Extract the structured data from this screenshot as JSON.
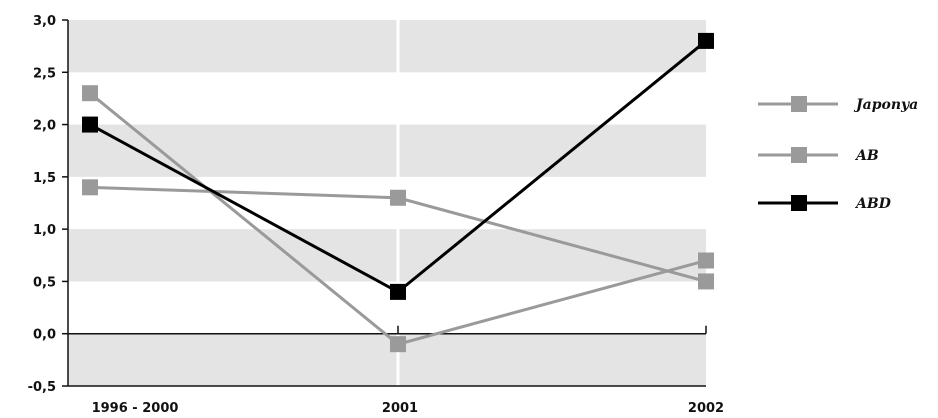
{
  "chart_data": {
    "type": "line",
    "categories": [
      "1996 - 2000",
      "2001",
      "2002"
    ],
    "y_tick_labels": [
      "3,0",
      "2,5",
      "2,0",
      "1,5",
      "1,0",
      "0,5",
      "0,0",
      "-0,5"
    ],
    "ylim": [
      -0.5,
      3.0
    ],
    "grid": "alternating horizontal bands",
    "legend_position": "right",
    "series": [
      {
        "name": "Japonya",
        "values": [
          2.3,
          -0.1,
          0.7
        ],
        "color": "#9a9a9a"
      },
      {
        "name": "AB",
        "values": [
          1.4,
          1.3,
          0.5
        ],
        "color": "#9a9a9a"
      },
      {
        "name": "ABD",
        "values": [
          2.0,
          0.4,
          2.8
        ],
        "color": "#000000"
      }
    ]
  }
}
